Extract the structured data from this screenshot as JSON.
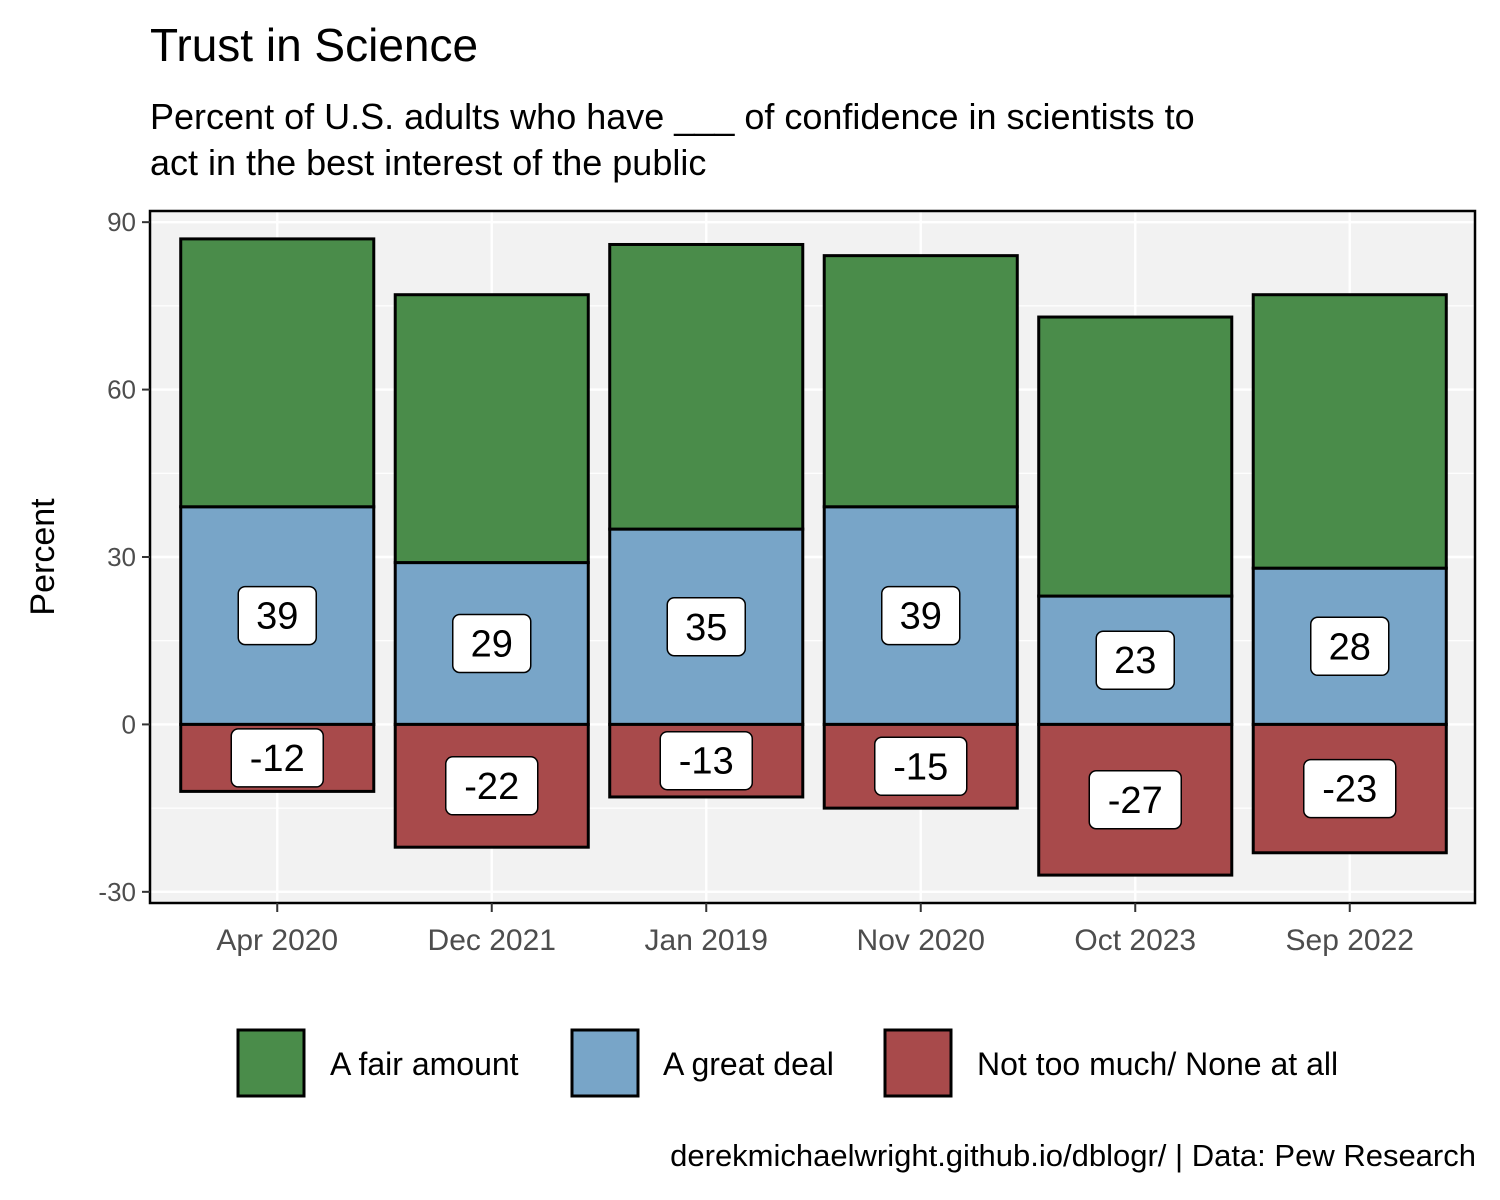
{
  "chart_data": {
    "type": "bar",
    "title": "Trust in Science",
    "subtitle_lines": [
      "Percent of U.S. adults who have ___ of confidence in scientists to",
      "act in the best interest of the public"
    ],
    "ylabel": "Percent",
    "xlabel": "",
    "caption": "derekmichaelwright.github.io/dblogr/ | Data: Pew Research",
    "ylim": [
      -32,
      92
    ],
    "yticks": [
      -30,
      0,
      30,
      60,
      90
    ],
    "categories": [
      "Apr 2020",
      "Dec 2021",
      "Jan 2019",
      "Nov 2020",
      "Oct 2023",
      "Sep 2022"
    ],
    "series": [
      {
        "name": "A fair amount",
        "values": [
          48,
          48,
          51,
          45,
          50,
          49
        ],
        "color": "#4a8c4a"
      },
      {
        "name": "A great deal",
        "values": [
          39,
          29,
          35,
          39,
          23,
          28
        ],
        "color": "#78a5c8"
      },
      {
        "name": "Not too much/ None at all",
        "values": [
          -12,
          -22,
          -13,
          -15,
          -27,
          -23
        ],
        "color": "#a84a4b"
      }
    ],
    "bar_labels": {
      "great_deal": [
        "39",
        "29",
        "35",
        "39",
        "23",
        "28"
      ],
      "not_too_much": [
        "-12",
        "-22",
        "-13",
        "-15",
        "-27",
        "-23"
      ]
    },
    "legend_position": "bottom",
    "grid": true
  }
}
